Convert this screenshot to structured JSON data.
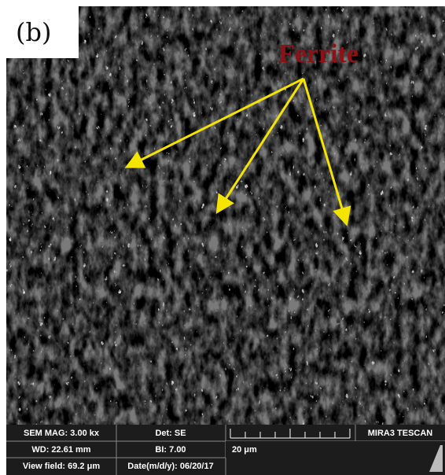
{
  "panel_label": "(b)",
  "annotation": "Ferrite",
  "info_bar": {
    "row1": [
      "SEM MAG: 3.00 kx",
      "Det: SE",
      "MIRA3 TESCAN"
    ],
    "row2": [
      "WD: 22.61 mm",
      "BI: 7.00",
      "20 μm"
    ],
    "row3": [
      "View field: 69.2 μm",
      "Date(m/d/y): 06/20/17"
    ]
  }
}
